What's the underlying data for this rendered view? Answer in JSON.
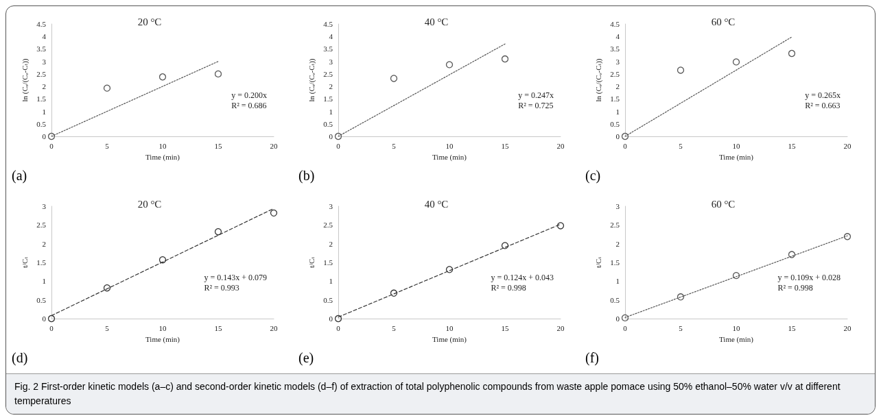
{
  "chart_data": [
    {
      "type": "scatter",
      "title": "20 °C",
      "xlabel": "Time (min)",
      "ylabel": "ln (Cₑ/(Cₑ-Cₜ))",
      "xlim": [
        0,
        20
      ],
      "xticks": [
        0,
        5,
        10,
        15,
        20
      ],
      "ylim": [
        0,
        4.5
      ],
      "yticks": [
        0,
        0.5,
        1,
        1.5,
        2,
        2.5,
        3,
        3.5,
        4,
        4.5
      ],
      "grid": false,
      "marker": "circle",
      "series": [
        {
          "color": "#555555",
          "x": [
            0,
            5,
            10,
            15
          ],
          "values": [
            0,
            1.93,
            2.38,
            2.5
          ]
        },
        {
          "type": "line",
          "color": "#555555",
          "marker": "none",
          "line_style": "dotted",
          "x": [
            0,
            15
          ],
          "values": [
            0,
            3.0
          ]
        }
      ],
      "annotations": [
        "y = 0.200x\nR² = 0.686",
        "(a)"
      ]
    },
    {
      "type": "scatter",
      "title": "40 °C",
      "xlabel": "Time (min)",
      "ylabel": "ln (Cₑ/(Cₑ-Cₜ))",
      "xlim": [
        0,
        20
      ],
      "xticks": [
        0,
        5,
        10,
        15,
        20
      ],
      "ylim": [
        0,
        4.5
      ],
      "yticks": [
        0,
        0.5,
        1,
        1.5,
        2,
        2.5,
        3,
        3.5,
        4,
        4.5
      ],
      "grid": false,
      "marker": "circle",
      "series": [
        {
          "color": "#555555",
          "x": [
            0,
            5,
            10,
            15
          ],
          "values": [
            0,
            2.32,
            2.87,
            3.1
          ]
        },
        {
          "type": "line",
          "color": "#555555",
          "marker": "none",
          "line_style": "dotted",
          "x": [
            0,
            15
          ],
          "values": [
            0,
            3.7
          ]
        }
      ],
      "annotations": [
        "y = 0.247x\nR² = 0.725",
        "(b)"
      ]
    },
    {
      "type": "scatter",
      "title": "60 °C",
      "xlabel": "Time (min)",
      "ylabel": "ln (Cₑ/(Cₑ-Cₜ))",
      "xlim": [
        0,
        20
      ],
      "xticks": [
        0,
        5,
        10,
        15,
        20
      ],
      "ylim": [
        0,
        4.5
      ],
      "yticks": [
        0,
        0.5,
        1,
        1.5,
        2,
        2.5,
        3,
        3.5,
        4,
        4.5
      ],
      "grid": false,
      "marker": "circle",
      "series": [
        {
          "color": "#555555",
          "x": [
            0,
            5,
            10,
            15
          ],
          "values": [
            0,
            2.65,
            2.98,
            3.32
          ]
        },
        {
          "type": "line",
          "color": "#555555",
          "marker": "none",
          "line_style": "dotted",
          "x": [
            0,
            15
          ],
          "values": [
            0,
            3.98
          ]
        }
      ],
      "annotations": [
        "y = 0.265x\nR² = 0.663",
        "(c)"
      ]
    },
    {
      "type": "scatter",
      "title": "20 °C",
      "xlabel": "Time (min)",
      "ylabel": "t/Cₜ",
      "xlim": [
        0,
        20
      ],
      "xticks": [
        0,
        5,
        10,
        15,
        20
      ],
      "ylim": [
        0,
        3
      ],
      "yticks": [
        0,
        0.5,
        1,
        1.5,
        2,
        2.5,
        3
      ],
      "grid": false,
      "marker": "circle",
      "series": [
        {
          "color": "#333333",
          "x": [
            0,
            5,
            10,
            15,
            20
          ],
          "values": [
            0,
            0.82,
            1.57,
            2.32,
            2.82
          ]
        },
        {
          "type": "line",
          "color": "#333333",
          "marker": "none",
          "line_style": "dashed",
          "x": [
            0,
            20
          ],
          "values": [
            0.08,
            2.94
          ]
        }
      ],
      "annotations": [
        "y = 0.143x + 0.079\nR² = 0.993",
        "(d)"
      ]
    },
    {
      "type": "scatter",
      "title": "40 °C",
      "xlabel": "Time (min)",
      "ylabel": "t/Cₜ",
      "xlim": [
        0,
        20
      ],
      "xticks": [
        0,
        5,
        10,
        15,
        20
      ],
      "ylim": [
        0,
        3
      ],
      "yticks": [
        0,
        0.5,
        1,
        1.5,
        2,
        2.5,
        3
      ],
      "grid": false,
      "marker": "circle",
      "series": [
        {
          "color": "#333333",
          "x": [
            0,
            5,
            10,
            15,
            20
          ],
          "values": [
            0,
            0.68,
            1.31,
            1.95,
            2.48
          ]
        },
        {
          "type": "line",
          "color": "#333333",
          "marker": "none",
          "line_style": "dashed",
          "x": [
            0,
            20
          ],
          "values": [
            0.04,
            2.52
          ]
        }
      ],
      "annotations": [
        "y = 0.124x + 0.043\nR² = 0.998",
        "(e)"
      ]
    },
    {
      "type": "scatter",
      "title": "60 °C",
      "xlabel": "Time (min)",
      "ylabel": "t/Cₜ",
      "xlim": [
        0,
        20
      ],
      "xticks": [
        0,
        5,
        10,
        15,
        20
      ],
      "ylim": [
        0,
        3
      ],
      "yticks": [
        0,
        0.5,
        1,
        1.5,
        2,
        2.5,
        3
      ],
      "grid": false,
      "marker": "circle",
      "series": [
        {
          "color": "#555555",
          "x": [
            0,
            5,
            10,
            15,
            20
          ],
          "values": [
            0.02,
            0.58,
            1.15,
            1.71,
            2.19
          ]
        },
        {
          "type": "line",
          "color": "#555555",
          "marker": "none",
          "line_style": "dotted",
          "x": [
            0,
            20
          ],
          "values": [
            0.03,
            2.21
          ]
        }
      ],
      "annotations": [
        "y = 0.109x + 0.028\nR² = 0.998",
        "(f)",
        "Fig. 2  First-order kinetic models (a–c) and second-order kinetic models (d–f) of extraction of total polyphenolic compounds from waste apple pomace using 50% ethanol–50% water v/v at different temperatures"
      ]
    }
  ]
}
